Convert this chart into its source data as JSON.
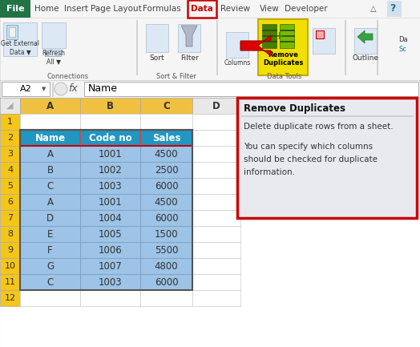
{
  "fig_width": 5.24,
  "fig_height": 4.33,
  "dpi": 100,
  "bg_color": "#f0f0f0",
  "ribbon": {
    "tabs": [
      "Home",
      "Insert",
      "Page Layout",
      "Formulas",
      "Data",
      "Review",
      "View",
      "Developer"
    ],
    "active_tab": "Data"
  },
  "formula_bar": {
    "cell_ref": "A2",
    "formula": "Name"
  },
  "spreadsheet": {
    "col_header_color": "#f0c040",
    "row_header_color": "#f5c518",
    "cell_bg_color": "#9dc3e6",
    "header_row_bg": "#2196C0",
    "data_headers": [
      "Name",
      "Code no",
      "Sales"
    ],
    "data": [
      [
        "A",
        "1001",
        "4500"
      ],
      [
        "B",
        "1002",
        "2500"
      ],
      [
        "C",
        "1003",
        "6000"
      ],
      [
        "A",
        "1001",
        "4500"
      ],
      [
        "D",
        "1004",
        "6000"
      ],
      [
        "E",
        "1005",
        "1500"
      ],
      [
        "F",
        "1006",
        "5500"
      ],
      [
        "G",
        "1007",
        "4800"
      ],
      [
        "C",
        "1003",
        "6000"
      ]
    ]
  },
  "tooltip": {
    "bg_color": "#e8eaf0",
    "border_color": "#cc0000",
    "title": "Remove Duplicates",
    "lines": [
      "Delete duplicate rows from a sheet.",
      "",
      "You can specify which columns",
      "should be checked for duplicate",
      "information."
    ]
  }
}
